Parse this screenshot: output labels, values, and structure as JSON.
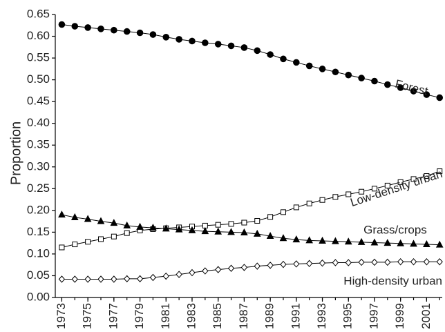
{
  "chart_data": {
    "type": "line",
    "y_label": "Proportion",
    "x": [
      1973,
      1974,
      1975,
      1976,
      1977,
      1978,
      1979,
      1980,
      1981,
      1982,
      1983,
      1984,
      1985,
      1986,
      1987,
      1988,
      1989,
      1990,
      1991,
      1992,
      1993,
      1994,
      1995,
      1996,
      1997,
      1998,
      1999,
      2000,
      2001,
      2002
    ],
    "xlim": [
      1972.5,
      2002.2
    ],
    "xticks": [
      1973,
      1975,
      1977,
      1979,
      1981,
      1983,
      1985,
      1987,
      1989,
      1991,
      1993,
      1995,
      1997,
      1999,
      2001
    ],
    "ylim": [
      0,
      0.65
    ],
    "yticks": [
      {
        "value": 0,
        "label": "0.00"
      },
      0.05,
      {
        "value": 0.1,
        "label": "0.10"
      },
      0.15,
      {
        "value": 0.2,
        "label": "0.20"
      },
      0.25,
      {
        "value": 0.3,
        "label": "0.30"
      },
      0.35,
      {
        "value": 0.4,
        "label": "0.40"
      },
      0.45,
      {
        "value": 0.5,
        "label": "0.50"
      },
      0.55,
      {
        "value": 0.6,
        "label": "0.60"
      },
      0.65
    ],
    "grid": false,
    "series": [
      {
        "name": "Forest",
        "color": "#000000",
        "marker": "filled-circle",
        "values": [
          0.627,
          0.623,
          0.62,
          0.617,
          0.614,
          0.611,
          0.608,
          0.604,
          0.598,
          0.593,
          0.589,
          0.585,
          0.582,
          0.578,
          0.574,
          0.567,
          0.558,
          0.548,
          0.54,
          0.532,
          0.525,
          0.518,
          0.511,
          0.504,
          0.497,
          0.489,
          0.482,
          0.474,
          0.466,
          0.459
        ]
      },
      {
        "name": "Low-density urban",
        "color": "#000000",
        "marker": "open-square",
        "values": [
          0.115,
          0.122,
          0.128,
          0.134,
          0.14,
          0.148,
          0.154,
          0.157,
          0.159,
          0.161,
          0.163,
          0.165,
          0.167,
          0.169,
          0.172,
          0.176,
          0.185,
          0.196,
          0.207,
          0.216,
          0.224,
          0.231,
          0.237,
          0.243,
          0.25,
          0.257,
          0.265,
          0.272,
          0.279,
          0.29
        ]
      },
      {
        "name": "Grass/crops",
        "color": "#000000",
        "marker": "filled-triangle",
        "values": [
          0.19,
          0.184,
          0.18,
          0.175,
          0.171,
          0.165,
          0.162,
          0.16,
          0.158,
          0.156,
          0.154,
          0.152,
          0.151,
          0.15,
          0.149,
          0.146,
          0.141,
          0.136,
          0.133,
          0.131,
          0.13,
          0.129,
          0.128,
          0.127,
          0.126,
          0.125,
          0.124,
          0.123,
          0.122,
          0.121
        ]
      },
      {
        "name": "High-density urban",
        "color": "#000000",
        "marker": "open-diamond",
        "values": [
          0.042,
          0.042,
          0.042,
          0.042,
          0.042,
          0.043,
          0.043,
          0.046,
          0.049,
          0.053,
          0.057,
          0.061,
          0.064,
          0.067,
          0.069,
          0.072,
          0.074,
          0.076,
          0.077,
          0.078,
          0.079,
          0.08,
          0.08,
          0.081,
          0.081,
          0.081,
          0.082,
          0.082,
          0.082,
          0.082
        ]
      }
    ]
  }
}
